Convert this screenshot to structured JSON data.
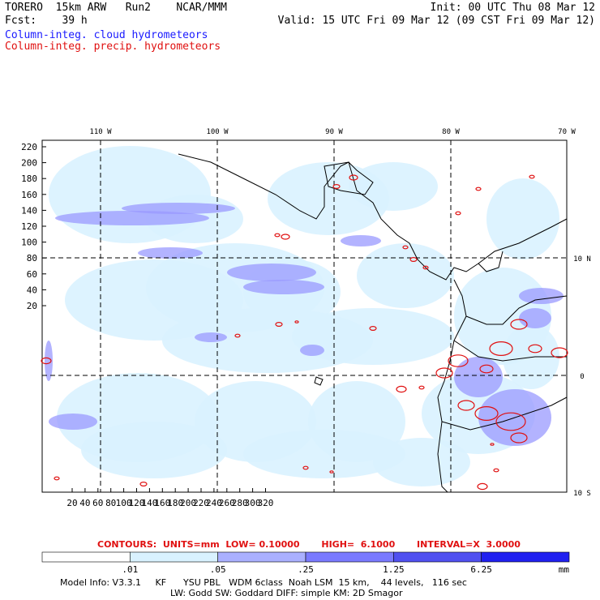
{
  "header": {
    "title": "TORERO  15km ARW   Run2    NCAR/MMM",
    "fcst": "Fcst:    39 h",
    "init": "Init: 00 UTC Thu 08 Mar 12",
    "valid": "Valid: 15 UTC Fri 09 Mar 12 (09 CST Fri 09 Mar 12)"
  },
  "legend": {
    "cloud": "Column-integ. cloud hydrometeors",
    "precip": "Column-integ. precip. hydrometeors"
  },
  "map": {
    "lon_labels": [
      "110 W",
      "100 W",
      "90 W",
      "80 W",
      "70 W"
    ],
    "lat_labels": [
      "10 N",
      "0",
      "10 S"
    ],
    "y_ticks": [
      "220",
      "200",
      "180",
      "160",
      "140",
      "120",
      "100",
      "80",
      "60",
      "40",
      "20"
    ],
    "x_ticks": [
      "20",
      "40",
      "60",
      "80",
      "100",
      "120",
      "140",
      "160",
      "180",
      "200",
      "220",
      "240",
      "260",
      "280",
      "300",
      "320"
    ],
    "colors": {
      "land_line": "#000000",
      "light": "#d9f2ff",
      "mid": "#9999ff",
      "precip": "#e01010"
    }
  },
  "contours": {
    "text": "CONTOURS:  UNITS=mm  LOW= 0.10000       HIGH=  6.1000       INTERVAL=X  3.0000"
  },
  "colorbar": {
    "labels": [
      ".01",
      ".05",
      ".25",
      "1.25",
      "6.25"
    ],
    "unit": "mm",
    "colors": [
      "#ffffff",
      "#d9f2ff",
      "#aab0ff",
      "#7a7aff",
      "#5050f0",
      "#2020f0"
    ]
  },
  "footer": {
    "line1": "Model Info: V3.3.1     KF      YSU PBL   WDM 6class  Noah LSM  15 km,    44 levels,   116 sec",
    "line2": "LW: Godd SW: Goddard DIFF: simple KM: 2D Smagor"
  }
}
